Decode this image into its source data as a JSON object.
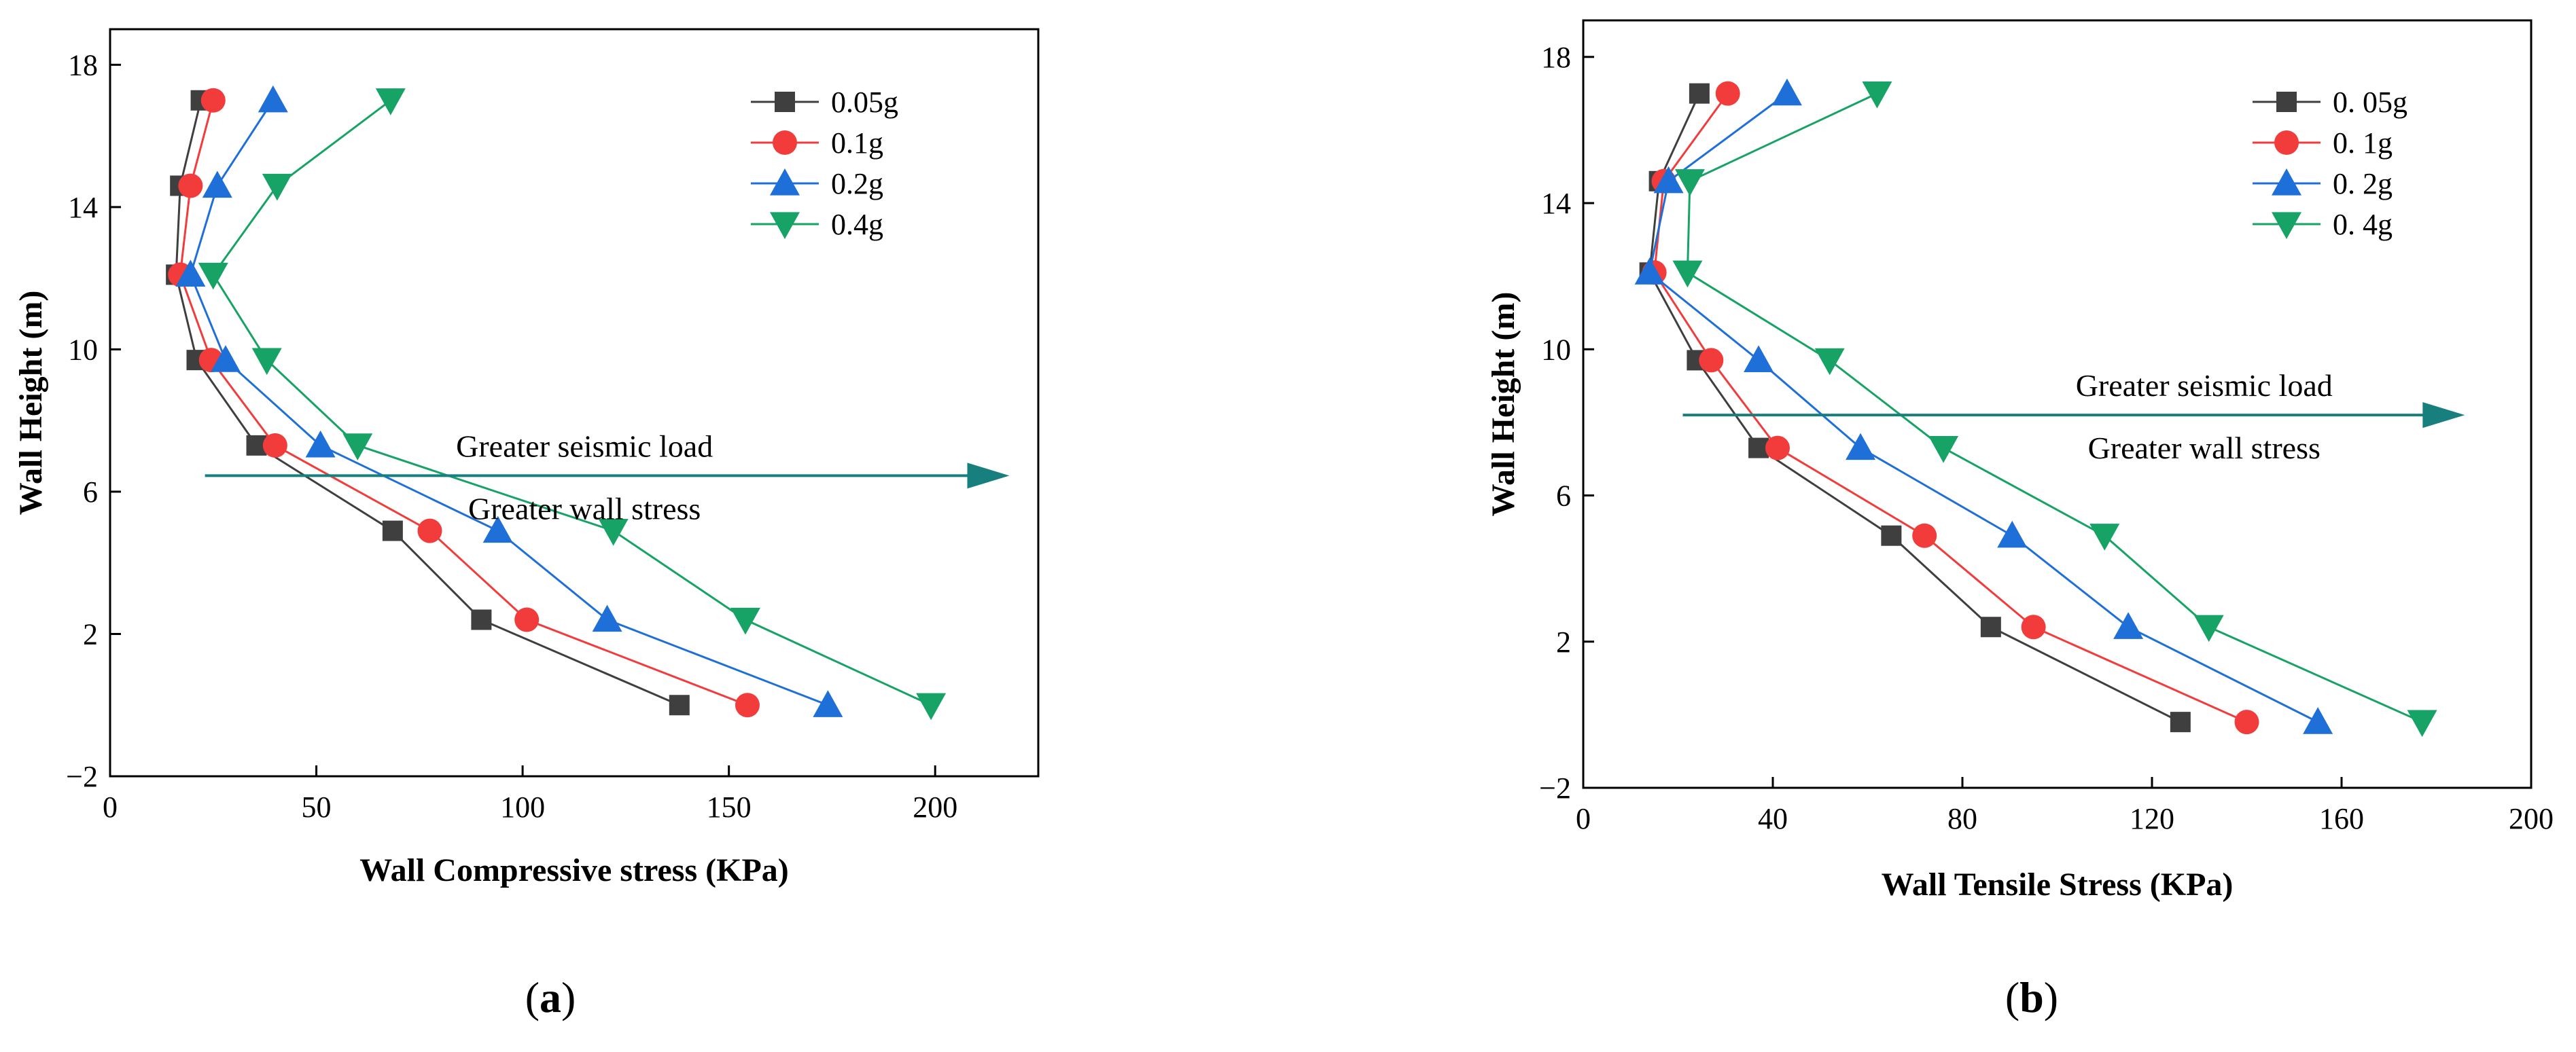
{
  "chart_data": [
    {
      "panel": "a",
      "type": "line",
      "xlabel": "Wall Compressive stress (KPa)",
      "ylabel": "Wall Height (m)",
      "xlim": [
        0,
        225
      ],
      "ylim": [
        -2,
        19
      ],
      "xticks": [
        "0",
        "50",
        "100",
        "150",
        "200"
      ],
      "yticks": [
        "−2",
        "2",
        "6",
        "10",
        "14",
        "18"
      ],
      "grid": false,
      "legend_position": "top-right",
      "series": [
        {
          "name": "0.05g",
          "marker": "square",
          "color": "#3f3f3f",
          "points": [
            [
              138,
              0
            ],
            [
              90,
              2.4
            ],
            [
              68.5,
              4.9
            ],
            [
              35.5,
              7.3
            ],
            [
              21,
              9.7
            ],
            [
              16,
              12.1
            ],
            [
              17,
              14.6
            ],
            [
              22,
              17
            ]
          ]
        },
        {
          "name": "0.1g",
          "marker": "circle",
          "color": "#f23c3c",
          "points": [
            [
              154.5,
              0
            ],
            [
              101,
              2.4
            ],
            [
              77.5,
              4.9
            ],
            [
              40,
              7.3
            ],
            [
              24.5,
              9.7
            ],
            [
              17,
              12.1
            ],
            [
              19.5,
              14.6
            ],
            [
              25,
              17
            ]
          ]
        },
        {
          "name": "0.2g",
          "marker": "triangle-up",
          "color": "#1f6fd9",
          "points": [
            [
              174,
              0
            ],
            [
              120.5,
              2.4
            ],
            [
              94,
              4.9
            ],
            [
              51,
              7.3
            ],
            [
              28,
              9.7
            ],
            [
              19.5,
              12.1
            ],
            [
              26,
              14.6
            ],
            [
              39.5,
              17
            ]
          ]
        },
        {
          "name": "0.4g",
          "marker": "triangle-down",
          "color": "#16a365",
          "points": [
            [
              199,
              0
            ],
            [
              154,
              2.4
            ],
            [
              122,
              4.9
            ],
            [
              60,
              7.3
            ],
            [
              38,
              9.7
            ],
            [
              25,
              12.1
            ],
            [
              40.5,
              14.6
            ],
            [
              68,
              17
            ]
          ]
        }
      ],
      "annotation": {
        "line1": "Greater seismic load",
        "line2": "Greater wall stress",
        "arrow_from": [
          23,
          6.45
        ],
        "arrow_to": [
          218,
          6.45
        ]
      }
    },
    {
      "panel": "b",
      "type": "line",
      "xlabel": "Wall Tensile Stress (KPa)",
      "ylabel": "Wall Height (m)",
      "xlim": [
        0,
        200
      ],
      "ylim": [
        -2,
        19
      ],
      "xticks": [
        "0",
        "40",
        "80",
        "120",
        "160",
        "200"
      ],
      "yticks": [
        "−2",
        "2",
        "6",
        "10",
        "14",
        "18"
      ],
      "grid": false,
      "legend_position": "top-right",
      "series": [
        {
          "name": "0. 05g",
          "marker": "square",
          "color": "#3f3f3f",
          "points": [
            [
              126,
              -0.2
            ],
            [
              86,
              2.4
            ],
            [
              65,
              4.9
            ],
            [
              37,
              7.3
            ],
            [
              24,
              9.7
            ],
            [
              14,
              12.1
            ],
            [
              16,
              14.6
            ],
            [
              24.5,
              17
            ]
          ]
        },
        {
          "name": "0. 1g",
          "marker": "circle",
          "color": "#f23c3c",
          "points": [
            [
              140,
              -0.2
            ],
            [
              95,
              2.4
            ],
            [
              72,
              4.9
            ],
            [
              41,
              7.3
            ],
            [
              27,
              9.7
            ],
            [
              15,
              12.1
            ],
            [
              17,
              14.6
            ],
            [
              30.5,
              17
            ]
          ]
        },
        {
          "name": "0. 2g",
          "marker": "triangle-up",
          "color": "#1f6fd9",
          "points": [
            [
              155,
              -0.2
            ],
            [
              115,
              2.4
            ],
            [
              90.5,
              4.9
            ],
            [
              58.5,
              7.3
            ],
            [
              37,
              9.7
            ],
            [
              14,
              12.1
            ],
            [
              18,
              14.6
            ],
            [
              43,
              17
            ]
          ]
        },
        {
          "name": "0. 4g",
          "marker": "triangle-down",
          "color": "#16a365",
          "points": [
            [
              177,
              -0.2
            ],
            [
              132,
              2.4
            ],
            [
              110,
              4.9
            ],
            [
              76,
              7.3
            ],
            [
              52,
              9.7
            ],
            [
              22,
              12.1
            ],
            [
              22.5,
              14.6
            ],
            [
              62,
              17
            ]
          ]
        }
      ],
      "annotation": {
        "line1": "Greater seismic load",
        "line2": "Greater wall stress",
        "arrow_from": [
          21,
          8.2
        ],
        "arrow_to": [
          186,
          8.2
        ]
      }
    }
  ],
  "panel_labels": [
    {
      "open": "(",
      "letter": "a",
      "close": ")"
    },
    {
      "open": "(",
      "letter": "b",
      "close": ")"
    }
  ],
  "colors": {
    "axis": "#000000",
    "arrow": "#17807e"
  }
}
